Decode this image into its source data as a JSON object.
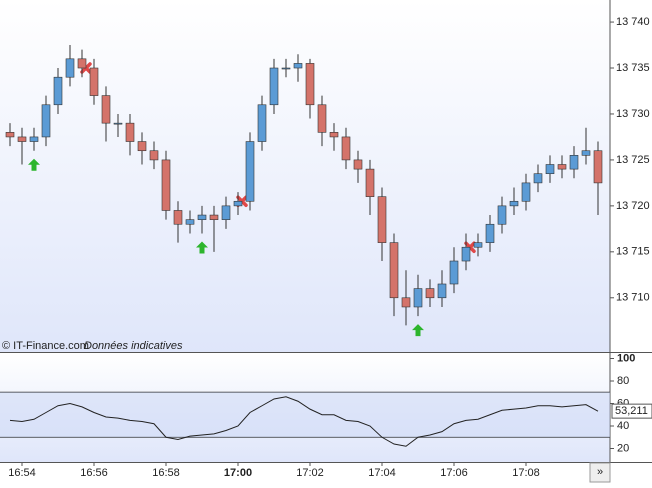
{
  "chart_data": [
    {
      "type": "candlestick",
      "watermark": "© IT-Finance.com",
      "note": "Données indicatives",
      "categories": [
        null,
        "16:54",
        null,
        null,
        null,
        null,
        null,
        "16:56",
        null,
        null,
        null,
        null,
        null,
        "16:58",
        null,
        null,
        null,
        null,
        null,
        "17:00",
        null,
        null,
        null,
        null,
        null,
        "17:02",
        null,
        null,
        null,
        null,
        null,
        "17:04",
        null,
        null,
        null,
        null,
        null,
        "17:06",
        null,
        null,
        null,
        null,
        null,
        "17:08",
        null,
        null,
        null,
        null,
        null,
        null
      ],
      "open": [
        13728,
        13727.5,
        13727,
        13727.5,
        13731,
        13734,
        13736,
        13735,
        13732,
        13729,
        13729,
        13727,
        13726,
        13725,
        13719.5,
        13718,
        13718.5,
        13719,
        13718.5,
        13720,
        13720.5,
        13727,
        13731,
        13735,
        13735,
        13735.5,
        13731,
        13728,
        13727.5,
        13725,
        13724,
        13721,
        13716,
        13710,
        13709,
        13711,
        13710,
        13711.5,
        13714,
        13715.5,
        13716,
        13718,
        13720,
        13720.5,
        13722.5,
        13723.5,
        13724.5,
        13724,
        13725.5,
        13726
      ],
      "high": [
        13729,
        13728.5,
        13728.5,
        13732,
        13735,
        13737.5,
        13737,
        13736,
        13733,
        13730,
        13730,
        13728,
        13727,
        13726,
        13720.5,
        13719.5,
        13720,
        13720,
        13721,
        13721.5,
        13728,
        13732,
        13736,
        13736,
        13736.5,
        13736,
        13732,
        13729,
        13728.5,
        13726,
        13725,
        13722,
        13717,
        13713,
        13712.5,
        13712,
        13713,
        13715.5,
        13717,
        13717,
        13719,
        13721,
        13722,
        13723.5,
        13724.5,
        13725.5,
        13725.5,
        13726.5,
        13728.5,
        13727
      ],
      "low": [
        13726.5,
        13724.5,
        13726,
        13726.5,
        13730,
        13733,
        13734,
        13731,
        13727,
        13727.5,
        13725.5,
        13724.5,
        13724,
        13718.5,
        13716,
        13717,
        13717,
        13715,
        13717.5,
        13719,
        13719.5,
        13726,
        13730,
        13734,
        13733.5,
        13729.5,
        13726.5,
        13726,
        13724,
        13722.5,
        13719,
        13714,
        13708,
        13707,
        13708,
        13709,
        13709,
        13710.5,
        13713,
        13714.5,
        13715,
        13717,
        13719,
        13719.5,
        13721.5,
        13722.5,
        13723,
        13723,
        13724.5,
        13719
      ],
      "close": [
        13727.5,
        13727,
        13727.5,
        13731,
        13734,
        13736,
        13735,
        13732,
        13729,
        13729,
        13727,
        13726,
        13725,
        13719.5,
        13718,
        13718.5,
        13719,
        13718.5,
        13720,
        13720.5,
        13727,
        13731,
        13735,
        13735,
        13735.5,
        13731,
        13728,
        13727.5,
        13725,
        13724,
        13721,
        13716,
        13710,
        13709,
        13711,
        13710,
        13711.5,
        13714,
        13715.5,
        13716,
        13718,
        13720,
        13720.5,
        13722.5,
        13723.5,
        13724.5,
        13724,
        13725.5,
        13726,
        13722.5
      ],
      "up_color": "#5b9bd5",
      "down_color": "#d4736a",
      "buy_signals": [
        2,
        16,
        34
      ],
      "sell_signals": [
        6,
        19,
        38
      ],
      "ylim": [
        13704.1,
        13742.4
      ],
      "yticks": [
        {
          "value": 13710,
          "label": "13 710"
        },
        {
          "value": 13715,
          "label": "13 715"
        },
        {
          "value": 13720,
          "label": "13 720"
        },
        {
          "value": 13725,
          "label": "13 725"
        },
        {
          "value": 13730,
          "label": "13 730"
        },
        {
          "value": 13735,
          "label": "13 735"
        },
        {
          "value": 13740,
          "label": "13 740"
        }
      ]
    },
    {
      "type": "line",
      "values": [
        45,
        44,
        46,
        52,
        58,
        60,
        57,
        52,
        48,
        47,
        45,
        44,
        42,
        30,
        28,
        31,
        32,
        33,
        36,
        40,
        52,
        58,
        64,
        66,
        62,
        55,
        50,
        50,
        45,
        44,
        40,
        30,
        24,
        22,
        30,
        32,
        35,
        42,
        45,
        46,
        50,
        54,
        55,
        56,
        58,
        58,
        57,
        58,
        59,
        53.211
      ],
      "last_label": "53,211",
      "color": "#222222",
      "ylim": [
        8,
        104
      ],
      "yticks": [
        20,
        40,
        60,
        80,
        100
      ],
      "levels": [
        30,
        70
      ]
    }
  ]
}
